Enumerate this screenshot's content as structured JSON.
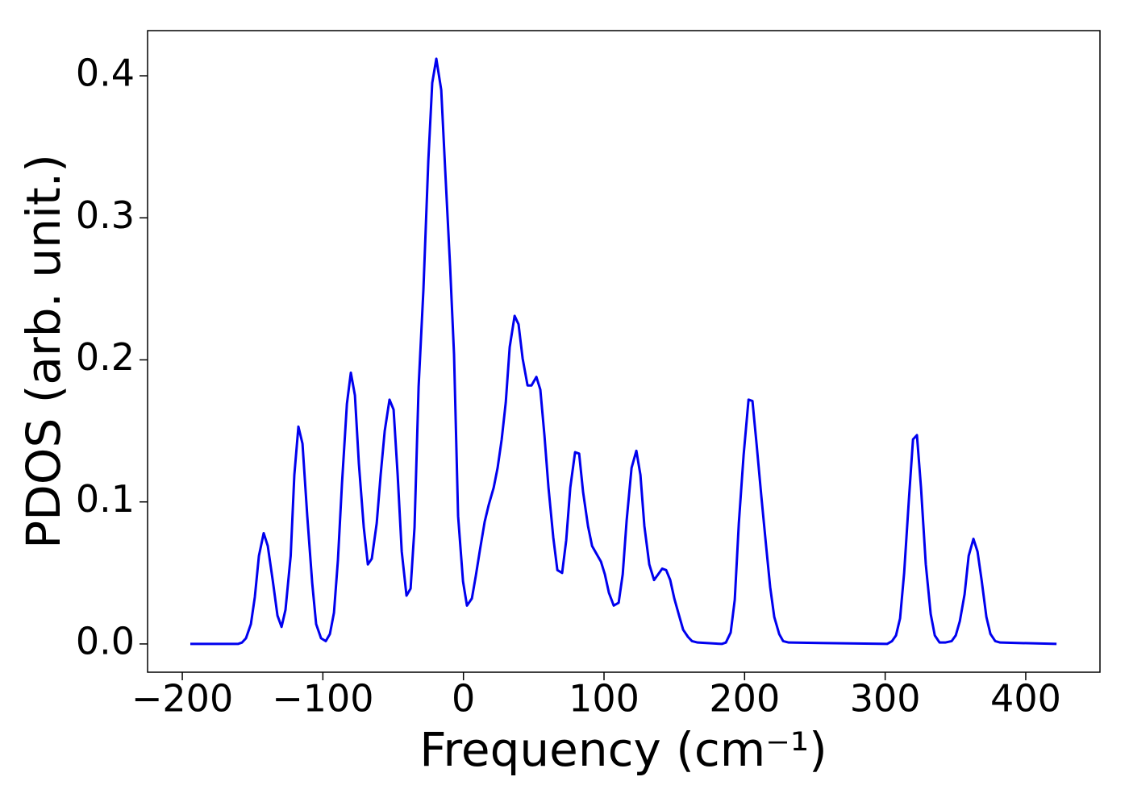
{
  "chart_data": {
    "type": "line",
    "xlabel": "Frequency (cm⁻¹)",
    "ylabel": "PDOS (arb. unit.)",
    "xlim": [
      -224.7,
      452.8
    ],
    "ylim": [
      -0.0199,
      0.4318
    ],
    "xticks": [
      {
        "value": -200,
        "label": "−200"
      },
      {
        "value": -100,
        "label": "−100"
      },
      0,
      100,
      200,
      300,
      400
    ],
    "yticks": [
      {
        "value": 0,
        "label": "0.0"
      },
      0.1,
      0.2,
      0.3,
      0.4
    ],
    "grid": false,
    "series": [
      {
        "name": "PDOS",
        "color": "#0000ee",
        "x": [
          -194.3,
          -160.4,
          -157.5,
          -154.7,
          -151.2,
          -148.4,
          -145.5,
          -142.1,
          -139.2,
          -135.7,
          -132.3,
          -129.4,
          -126.6,
          -122.9,
          -120.3,
          -117.4,
          -114.5,
          -111.1,
          -107.6,
          -104.8,
          -101.3,
          -97.9,
          -95.0,
          -92.1,
          -89.3,
          -86.4,
          -82.9,
          -80.1,
          -77.2,
          -74.4,
          -70.9,
          -68.0,
          -65.2,
          -61.7,
          -58.9,
          -56.0,
          -52.6,
          -49.7,
          -46.8,
          -43.9,
          -40.5,
          -37.6,
          -34.8,
          -31.9,
          -28.5,
          -25.0,
          -22.2,
          -19.3,
          -15.8,
          -13.0,
          -9.5,
          -6.7,
          -3.8,
          -0.3,
          2.5,
          6.0,
          8.8,
          11.7,
          15.1,
          18.0,
          21.5,
          24.3,
          27.2,
          30.1,
          32.9,
          36.4,
          39.2,
          42.1,
          45.6,
          48.4,
          51.9,
          54.7,
          57.6,
          60.5,
          63.9,
          66.8,
          70.2,
          73.1,
          76.0,
          79.4,
          82.3,
          85.1,
          88.6,
          91.5,
          94.9,
          97.8,
          100.6,
          103.5,
          106.9,
          110.4,
          113.3,
          116.1,
          119.6,
          123.0,
          125.9,
          128.7,
          132.2,
          135.6,
          138.5,
          141.4,
          144.2,
          147.1,
          150.0,
          153.4,
          156.3,
          159.7,
          162.6,
          166.6,
          183.8,
          186.7,
          190.1,
          193.0,
          195.9,
          199.3,
          202.8,
          205.6,
          208.5,
          211.9,
          215.4,
          218.2,
          221.1,
          224.6,
          227.4,
          231.4,
          301.4,
          304.9,
          307.7,
          310.6,
          313.5,
          316.9,
          319.8,
          322.6,
          325.5,
          328.9,
          332.4,
          335.3,
          338.7,
          342.7,
          347.3,
          350.2,
          353.1,
          356.5,
          359.4,
          362.8,
          365.7,
          368.6,
          372.0,
          374.9,
          378.3,
          381.8,
          421.9
        ],
        "values": [
          0,
          0,
          0.001,
          0.004,
          0.014,
          0.033,
          0.062,
          0.078,
          0.069,
          0.045,
          0.02,
          0.012,
          0.024,
          0.062,
          0.119,
          0.153,
          0.141,
          0.09,
          0.043,
          0.014,
          0.004,
          0.002,
          0.007,
          0.022,
          0.059,
          0.113,
          0.169,
          0.191,
          0.175,
          0.127,
          0.082,
          0.056,
          0.06,
          0.085,
          0.119,
          0.15,
          0.172,
          0.165,
          0.119,
          0.065,
          0.034,
          0.039,
          0.082,
          0.181,
          0.249,
          0.34,
          0.395,
          0.412,
          0.39,
          0.334,
          0.266,
          0.204,
          0.09,
          0.044,
          0.027,
          0.032,
          0.048,
          0.066,
          0.086,
          0.098,
          0.11,
          0.124,
          0.144,
          0.17,
          0.209,
          0.231,
          0.225,
          0.201,
          0.182,
          0.182,
          0.188,
          0.179,
          0.147,
          0.11,
          0.075,
          0.052,
          0.05,
          0.073,
          0.11,
          0.135,
          0.134,
          0.107,
          0.083,
          0.069,
          0.063,
          0.058,
          0.049,
          0.036,
          0.027,
          0.029,
          0.049,
          0.087,
          0.124,
          0.136,
          0.119,
          0.083,
          0.056,
          0.045,
          0.049,
          0.053,
          0.052,
          0.045,
          0.032,
          0.02,
          0.01,
          0.005,
          0.002,
          0.001,
          0,
          0.001,
          0.008,
          0.031,
          0.085,
          0.133,
          0.172,
          0.171,
          0.141,
          0.104,
          0.068,
          0.04,
          0.019,
          0.007,
          0.002,
          0.001,
          0,
          0.002,
          0.006,
          0.018,
          0.05,
          0.102,
          0.144,
          0.147,
          0.11,
          0.056,
          0.021,
          0.006,
          0.001,
          0.001,
          0.002,
          0.006,
          0.016,
          0.035,
          0.062,
          0.074,
          0.065,
          0.045,
          0.019,
          0.007,
          0.002,
          0.001,
          0
        ]
      }
    ]
  }
}
